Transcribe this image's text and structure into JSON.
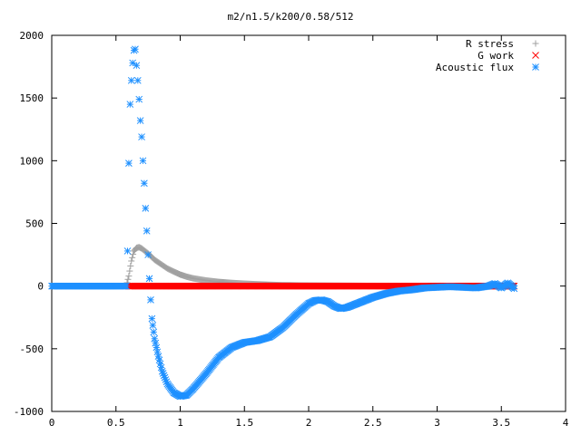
{
  "chart_data": {
    "type": "scatter",
    "title": "m2/n1.5/k200/0.58/512",
    "xlabel": "",
    "ylabel": "",
    "xlim": [
      0,
      4
    ],
    "ylim": [
      -1000,
      2000
    ],
    "x_ticks": [
      "0",
      "0.5",
      "1",
      "1.5",
      "2",
      "2.5",
      "3",
      "3.5",
      "4"
    ],
    "y_ticks": [
      "2000",
      "1500",
      "1000",
      "500",
      "0",
      "-500",
      "-1000"
    ],
    "x_tick_values": [
      0,
      0.5,
      1,
      1.5,
      2,
      2.5,
      3,
      3.5,
      4
    ],
    "y_tick_values": [
      2000,
      1500,
      1000,
      500,
      0,
      -500,
      -1000
    ],
    "grid": false,
    "legend_position": "top-right",
    "series": [
      {
        "name": "R stress",
        "marker": "plus",
        "color": "#a0a0a0",
        "points": [
          [
            0.0,
            0
          ],
          [
            0.58,
            0
          ],
          [
            0.6,
            80
          ],
          [
            0.62,
            200
          ],
          [
            0.64,
            280
          ],
          [
            0.66,
            305
          ],
          [
            0.68,
            310
          ],
          [
            0.7,
            300
          ],
          [
            0.75,
            260
          ],
          [
            0.8,
            210
          ],
          [
            0.85,
            175
          ],
          [
            0.9,
            140
          ],
          [
            0.95,
            115
          ],
          [
            1.0,
            92
          ],
          [
            1.05,
            75
          ],
          [
            1.1,
            62
          ],
          [
            1.2,
            45
          ],
          [
            1.3,
            33
          ],
          [
            1.4,
            25
          ],
          [
            1.5,
            19
          ],
          [
            1.6,
            14
          ],
          [
            1.7,
            10
          ],
          [
            1.8,
            7
          ],
          [
            2.0,
            4
          ],
          [
            2.5,
            1
          ],
          [
            3.0,
            0
          ],
          [
            3.6,
            0
          ]
        ]
      },
      {
        "name": "G work",
        "marker": "cross",
        "color": "#ff0000",
        "points": [
          [
            0.6,
            0
          ],
          [
            1.0,
            0
          ],
          [
            1.5,
            0
          ],
          [
            2.0,
            0
          ],
          [
            2.5,
            0
          ],
          [
            3.0,
            0
          ],
          [
            3.3,
            0
          ],
          [
            3.6,
            0
          ]
        ]
      },
      {
        "name": "Acoustic flux",
        "marker": "star",
        "color": "#1e90ff",
        "points": [
          [
            0.0,
            0
          ],
          [
            0.3,
            0
          ],
          [
            0.5,
            0
          ],
          [
            0.58,
            0
          ],
          [
            0.59,
            280
          ],
          [
            0.6,
            980
          ],
          [
            0.61,
            1450
          ],
          [
            0.62,
            1640
          ],
          [
            0.63,
            1780
          ],
          [
            0.64,
            1880
          ],
          [
            0.65,
            1890
          ],
          [
            0.66,
            1760
          ],
          [
            0.67,
            1640
          ],
          [
            0.68,
            1490
          ],
          [
            0.69,
            1320
          ],
          [
            0.7,
            1190
          ],
          [
            0.71,
            1000
          ],
          [
            0.72,
            820
          ],
          [
            0.73,
            620
          ],
          [
            0.74,
            440
          ],
          [
            0.75,
            250
          ],
          [
            0.76,
            60
          ],
          [
            0.77,
            -110
          ],
          [
            0.78,
            -260
          ],
          [
            0.8,
            -420
          ],
          [
            0.83,
            -560
          ],
          [
            0.86,
            -680
          ],
          [
            0.9,
            -780
          ],
          [
            0.95,
            -850
          ],
          [
            1.0,
            -880
          ],
          [
            1.05,
            -870
          ],
          [
            1.1,
            -820
          ],
          [
            1.2,
            -700
          ],
          [
            1.3,
            -570
          ],
          [
            1.4,
            -490
          ],
          [
            1.5,
            -450
          ],
          [
            1.6,
            -435
          ],
          [
            1.7,
            -405
          ],
          [
            1.8,
            -330
          ],
          [
            1.9,
            -230
          ],
          [
            2.0,
            -140
          ],
          [
            2.05,
            -115
          ],
          [
            2.1,
            -110
          ],
          [
            2.15,
            -125
          ],
          [
            2.2,
            -160
          ],
          [
            2.25,
            -180
          ],
          [
            2.3,
            -170
          ],
          [
            2.4,
            -130
          ],
          [
            2.5,
            -90
          ],
          [
            2.6,
            -60
          ],
          [
            2.7,
            -40
          ],
          [
            2.8,
            -30
          ],
          [
            2.9,
            -15
          ],
          [
            3.0,
            -10
          ],
          [
            3.1,
            -5
          ],
          [
            3.2,
            -10
          ],
          [
            3.3,
            -15
          ],
          [
            3.4,
            0
          ],
          [
            3.45,
            20
          ],
          [
            3.5,
            -15
          ],
          [
            3.55,
            25
          ],
          [
            3.6,
            -20
          ]
        ]
      }
    ]
  }
}
